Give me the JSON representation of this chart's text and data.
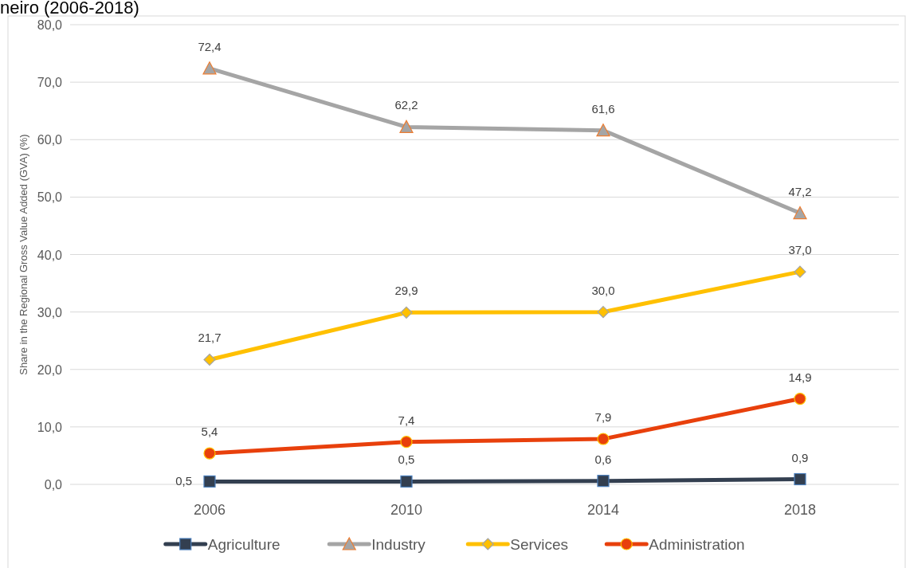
{
  "chart_data": {
    "type": "line",
    "title": "neiro (2006-2018)",
    "ylabel": "Share in the Regional Gross Value Added (GVA) (%)",
    "categories": [
      "2006",
      "2010",
      "2014",
      "2018"
    ],
    "series": [
      {
        "name": "Agriculture",
        "color": "#333f50",
        "marker": "square",
        "values": [
          0.5,
          0.5,
          0.6,
          0.9
        ],
        "value_labels": [
          "0,5",
          "0,5",
          "0,6",
          "0,9"
        ]
      },
      {
        "name": "Industry",
        "color": "#a5a5a5",
        "marker": "triangle",
        "values": [
          72.4,
          62.2,
          61.6,
          47.2
        ],
        "value_labels": [
          "72,4",
          "62,2",
          "61,6",
          "47,2"
        ]
      },
      {
        "name": "Services",
        "color": "#ffc000",
        "marker": "diamond",
        "values": [
          21.7,
          29.9,
          30.0,
          37.0
        ],
        "value_labels": [
          "21,7",
          "29,9",
          "30,0",
          "37,0"
        ]
      },
      {
        "name": "Administration",
        "color": "#e8400c",
        "marker": "circle",
        "values": [
          5.4,
          7.4,
          7.9,
          14.9
        ],
        "value_labels": [
          "5,4",
          "7,4",
          "7,9",
          "14,9"
        ]
      }
    ],
    "ylim": [
      0,
      80
    ],
    "yticks": [
      {
        "value": 0,
        "label": "0,0"
      },
      {
        "value": 10,
        "label": "10,0"
      },
      {
        "value": 20,
        "label": "20,0"
      },
      {
        "value": 30,
        "label": "30,0"
      },
      {
        "value": 40,
        "label": "40,0"
      },
      {
        "value": 50,
        "label": "50,0"
      },
      {
        "value": 60,
        "label": "60,0"
      },
      {
        "value": 70,
        "label": "70,0"
      },
      {
        "value": 80,
        "label": "80,0"
      }
    ],
    "grid": "y",
    "legend": "bottom",
    "line_style": "solid"
  }
}
